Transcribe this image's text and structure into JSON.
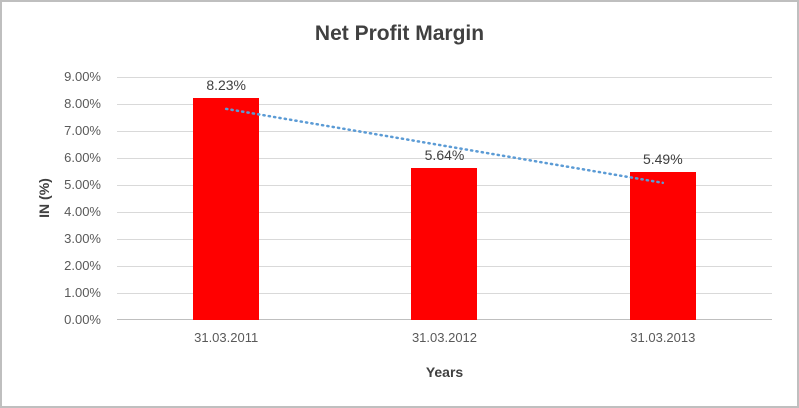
{
  "chart_data": {
    "type": "bar",
    "title": "Net Profit Margin",
    "xlabel": "Years",
    "ylabel": "IN (%)",
    "categories": [
      "31.03.2011",
      "31.03.2012",
      "31.03.2013"
    ],
    "values": [
      8.23,
      5.64,
      5.49
    ],
    "data_labels": [
      "8.23%",
      "5.64%",
      "5.49%"
    ],
    "ylim": [
      0,
      9
    ],
    "y_tick_interval": 1,
    "y_tick_labels": [
      "0.00%",
      "1.00%",
      "2.00%",
      "3.00%",
      "4.00%",
      "5.00%",
      "6.00%",
      "7.00%",
      "8.00%",
      "9.00%"
    ],
    "grid": true,
    "legend": "none",
    "bar_color": "#ff0000",
    "trendline": {
      "type": "linear",
      "style": "dotted",
      "color": "#5b9bd5",
      "start_value": 7.82,
      "end_value": 5.08
    }
  }
}
